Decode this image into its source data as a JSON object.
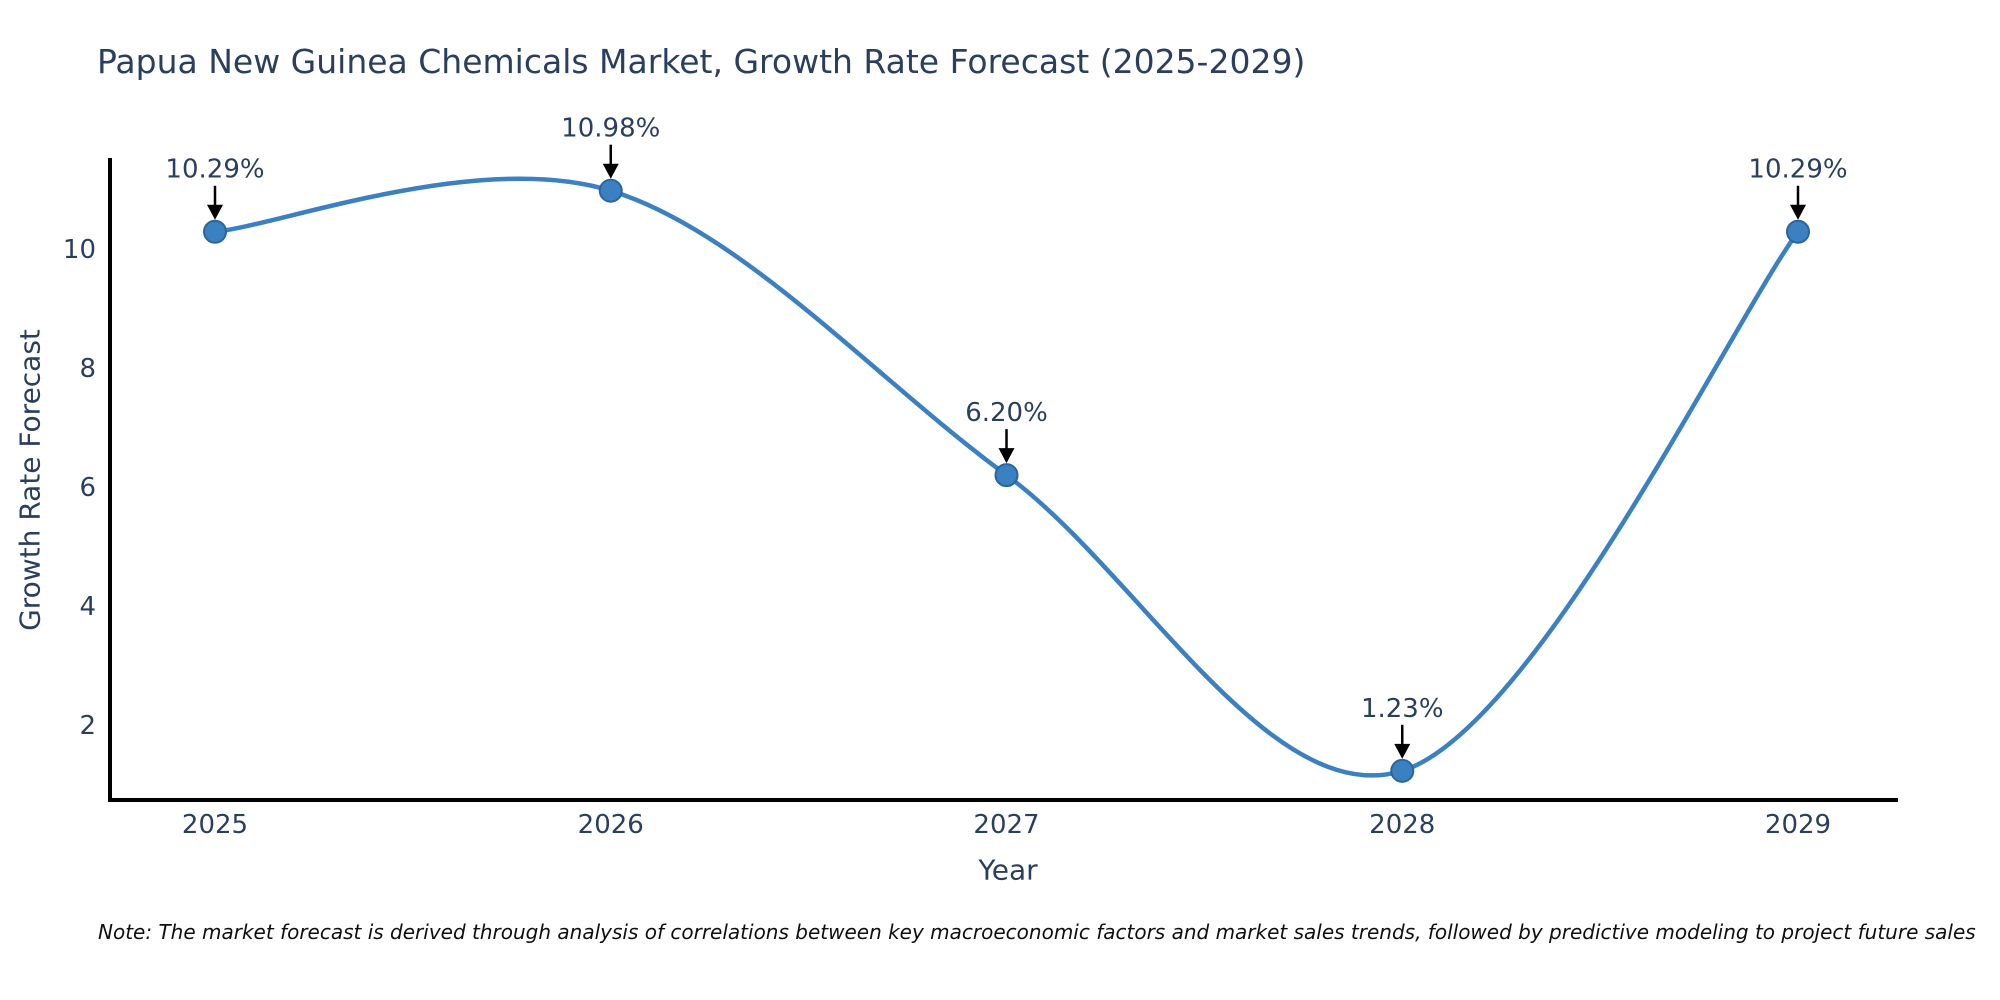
{
  "chart": {
    "title": "Papua New Guinea Chemicals Market, Growth Rate Forecast (2025-2029)",
    "note": "Note: The market forecast is derived through analysis of correlations between key macroeconomic factors and market sales trends, followed by predictive modeling to project future sales"
  },
  "chart_data": {
    "type": "line",
    "title": "Papua New Guinea Chemicals Market, Growth Rate Forecast (2025-2029)",
    "xlabel": "Year",
    "ylabel": "Growth Rate Forecast",
    "x": [
      2025,
      2026,
      2027,
      2028,
      2029
    ],
    "y": [
      10.29,
      10.98,
      6.2,
      1.23,
      10.29
    ],
    "point_labels": [
      "10.29%",
      "10.98%",
      "6.20%",
      "1.23%",
      "10.29%"
    ],
    "x_tick_labels": [
      "2025",
      "2026",
      "2027",
      "2028",
      "2029"
    ],
    "y_tick_values": [
      2,
      4,
      6,
      8,
      10
    ],
    "ylim": [
      0.74,
      11.5
    ],
    "line_shape": "spline",
    "grid": false,
    "legend_position": "none",
    "marker_style": "circle-with-down-arrow-annotation",
    "colors": {
      "line": "#3b80c1",
      "marker_fill": "#3b80c1",
      "marker_edge": "#29669f",
      "axis_line": "#000000",
      "tick_text": "#2a3f5f",
      "annotation_text": "#2a3f5f",
      "annotation_arrow": "#000000",
      "title_text": "#2a3f5f",
      "note_text": "#0f0f0f",
      "background": "#ffffff"
    }
  }
}
